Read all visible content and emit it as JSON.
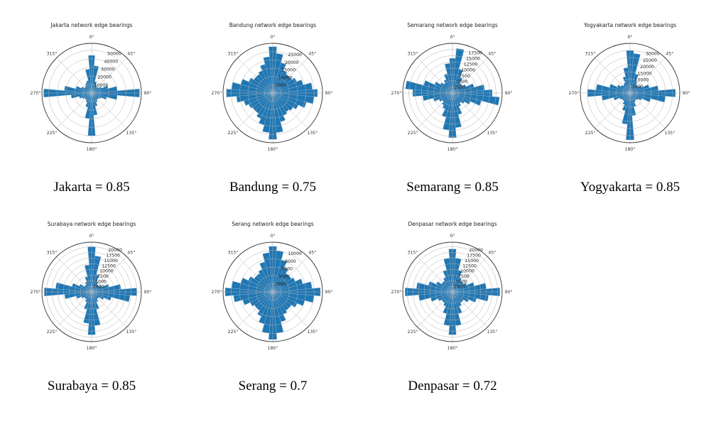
{
  "bearing_bins": [
    "0°",
    "10°",
    "20°",
    "30°",
    "40°",
    "50°",
    "60°",
    "70°",
    "80°",
    "90°",
    "100°",
    "110°",
    "120°",
    "130°",
    "140°",
    "150°",
    "160°",
    "170°",
    "180°",
    "190°",
    "200°",
    "210°",
    "220°",
    "230°",
    "240°",
    "250°",
    "260°",
    "270°",
    "280°",
    "290°",
    "300°",
    "310°",
    "320°",
    "330°",
    "340°",
    "350°"
  ],
  "angle_labels": [
    "0°",
    "45°",
    "90°",
    "135°",
    "180°",
    "225°",
    "270°",
    "315°"
  ],
  "bar_color": "#1f77b4",
  "chart_data": [
    {
      "type": "polar-bar",
      "title": "Jakarta network edge bearings",
      "caption": {
        "name": "Jakarta",
        "op": "=",
        "value": "0.85"
      },
      "rmax": 58000,
      "ring_ticks": [
        10000,
        20000,
        30000,
        40000,
        50000
      ],
      "values": [
        44000,
        32000,
        14000,
        11000,
        9000,
        10000,
        13000,
        20000,
        30000,
        56000,
        30000,
        18000,
        12000,
        10000,
        10000,
        12000,
        16000,
        26000,
        50000,
        30000,
        17000,
        12000,
        10000,
        10000,
        12000,
        15000,
        24000,
        56000,
        32000,
        19000,
        13000,
        10000,
        11000,
        13000,
        15000,
        28000
      ]
    },
    {
      "type": "polar-bar",
      "title": "Bandung network edge bearings",
      "caption": {
        "name": "Bandung",
        "op": "=",
        "value": "0.75"
      },
      "rmax": 30000,
      "ring_ticks": [
        5000,
        10000,
        15000,
        20000,
        25000
      ],
      "values": [
        28000,
        24000,
        19000,
        15000,
        14000,
        14000,
        16000,
        19000,
        24000,
        27000,
        25000,
        21000,
        17000,
        15000,
        14000,
        15000,
        18000,
        24000,
        28000,
        24000,
        20000,
        17000,
        15000,
        15000,
        16000,
        18000,
        22000,
        28000,
        25000,
        20000,
        16000,
        14000,
        14000,
        15000,
        18000,
        22000
      ]
    },
    {
      "type": "polar-bar",
      "title": "Semarang network edge bearings",
      "caption": {
        "name": "Semarang",
        "op": "=",
        "value": "0.85"
      },
      "rmax": 20000,
      "ring_ticks": [
        2500,
        5000,
        7500,
        10000,
        12500,
        15000,
        17500
      ],
      "values": [
        14000,
        18000,
        10000,
        7000,
        5000,
        5000,
        6000,
        9000,
        13000,
        16000,
        19000,
        12000,
        8000,
        6000,
        5000,
        6000,
        9000,
        14000,
        18000,
        15000,
        10000,
        7000,
        6000,
        5000,
        6000,
        8000,
        12000,
        16000,
        19000,
        12000,
        8000,
        6000,
        5000,
        6000,
        8000,
        12000
      ]
    },
    {
      "type": "polar-bar",
      "title": "Yogyakarta network edge bearings",
      "caption": {
        "name": "Yogyakarta",
        "op": "=",
        "value": "0.85"
      },
      "rmax": 35000,
      "ring_ticks": [
        5000,
        10000,
        15000,
        20000,
        25000,
        30000
      ],
      "values": [
        30000,
        28000,
        14000,
        9000,
        7000,
        7000,
        9000,
        14000,
        20000,
        32000,
        25000,
        15000,
        9000,
        7000,
        6000,
        7000,
        10000,
        16000,
        33000,
        22000,
        13000,
        9000,
        7000,
        7000,
        8000,
        12000,
        20000,
        30000,
        24000,
        15000,
        10000,
        8000,
        7000,
        8000,
        12000,
        18000
      ]
    },
    {
      "type": "polar-bar",
      "title": "Surabaya network edge bearings",
      "caption": {
        "name": "Surabaya",
        "op": "=",
        "value": "0.85"
      },
      "rmax": 22000,
      "ring_ticks": [
        2500,
        5000,
        7500,
        10000,
        12500,
        15000,
        17500,
        20000
      ],
      "values": [
        20000,
        16000,
        8000,
        5000,
        4000,
        4000,
        5000,
        8000,
        13000,
        20000,
        17000,
        9000,
        6000,
        4000,
        4000,
        5000,
        8000,
        15000,
        19000,
        14000,
        8000,
        5000,
        4000,
        4000,
        5000,
        7000,
        12000,
        21000,
        16000,
        9000,
        6000,
        4000,
        4000,
        5000,
        7000,
        12000
      ]
    },
    {
      "type": "polar-bar",
      "title": "Serang network edge bearings",
      "caption": {
        "name": "Serang",
        "op": "=",
        "value": "0.7"
      },
      "rmax": 12000,
      "ring_ticks": [
        2000,
        4000,
        6000,
        8000,
        10000
      ],
      "values": [
        11000,
        10000,
        8000,
        6500,
        5500,
        5500,
        6000,
        7500,
        9500,
        11500,
        10000,
        8000,
        6500,
        5500,
        5500,
        6000,
        7500,
        10000,
        11500,
        10000,
        8000,
        6500,
        5500,
        5500,
        6000,
        7500,
        9500,
        11500,
        10000,
        8000,
        6500,
        5500,
        5500,
        6000,
        7500,
        9500
      ]
    },
    {
      "type": "polar-bar",
      "title": "Denpasar network edge bearings",
      "caption": {
        "name": "Denpasar",
        "op": "=",
        "value": "0.72"
      },
      "rmax": 22000,
      "ring_ticks": [
        2500,
        5000,
        7500,
        10000,
        12500,
        15000,
        17500,
        20000
      ],
      "values": [
        19000,
        15000,
        10000,
        7000,
        6000,
        6000,
        7000,
        10000,
        15000,
        21000,
        16000,
        11000,
        8000,
        6000,
        6000,
        7000,
        10000,
        15000,
        19000,
        15000,
        10000,
        7000,
        6000,
        6000,
        7000,
        10000,
        15000,
        21000,
        16000,
        11000,
        8000,
        6000,
        6000,
        7000,
        10000,
        15000
      ]
    }
  ]
}
